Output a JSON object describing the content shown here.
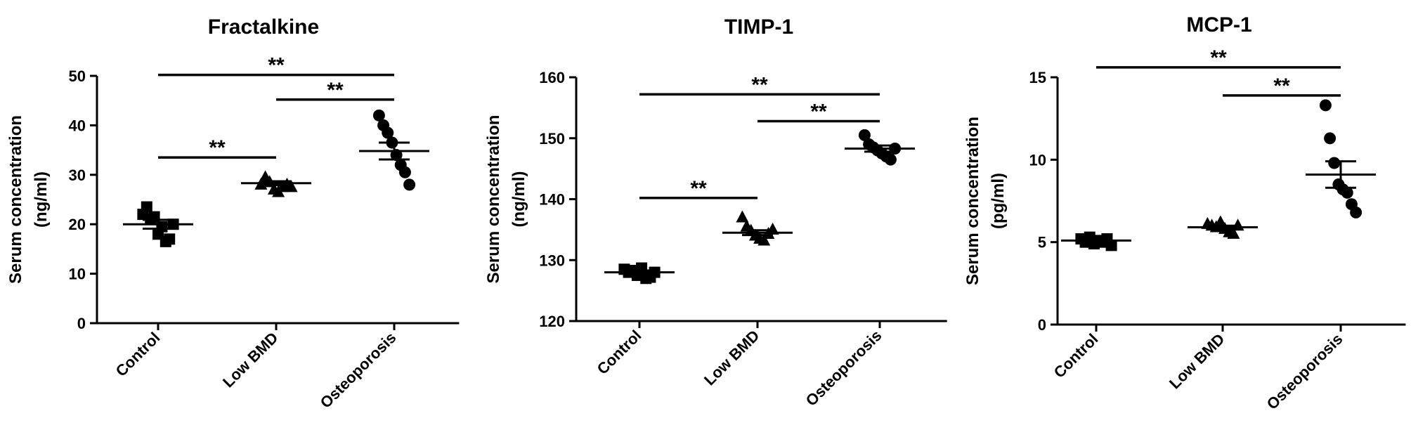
{
  "chart_data": [
    {
      "type": "scatter",
      "title": "Fractalkine",
      "ylabel_line1": "Serum concentration",
      "ylabel_line2": "(ng/ml)",
      "categories": [
        "Control",
        "Low BMD",
        "Osteoporosis"
      ],
      "ylim": [
        0,
        50
      ],
      "yticks": [
        0,
        10,
        20,
        30,
        40,
        50
      ],
      "markers": [
        "square",
        "triangle",
        "circle"
      ],
      "points": [
        [
          22.0,
          23.5,
          21.0,
          21.5,
          18.0,
          19.5,
          16.5,
          17.0,
          20.0
        ],
        [
          28.0,
          29.5,
          28.5,
          27.0,
          26.5,
          27.5,
          28.0,
          27.5
        ],
        [
          42.0,
          40.0,
          38.5,
          36.5,
          34.0,
          32.0,
          30.5,
          28.0
        ]
      ],
      "mean": [
        20.0,
        28.3,
        34.8
      ],
      "sem": [
        0.9,
        0.4,
        1.7
      ],
      "brackets": [
        {
          "from": 0,
          "to": 2,
          "y": 50.2,
          "label": "**"
        },
        {
          "from": 1,
          "to": 2,
          "y": 45.2,
          "label": "**"
        },
        {
          "from": 0,
          "to": 1,
          "y": 33.5,
          "label": "**"
        }
      ]
    },
    {
      "type": "scatter",
      "title": "TIMP-1",
      "ylabel_line1": "Serum concentration",
      "ylabel_line2": "(ng/ml)",
      "categories": [
        "Control",
        "Low BMD",
        "Osteoporosis"
      ],
      "ylim": [
        120,
        160
      ],
      "yticks": [
        120,
        130,
        140,
        150,
        160
      ],
      "markers": [
        "square",
        "triangle",
        "circle"
      ],
      "points": [
        [
          128.5,
          128.0,
          128.3,
          127.5,
          128.7,
          127.0,
          127.2,
          128.0
        ],
        [
          137.0,
          135.5,
          134.8,
          134.0,
          133.5,
          133.2,
          134.3,
          135.0
        ],
        [
          150.5,
          149.0,
          148.5,
          148.0,
          147.5,
          147.0,
          146.5,
          148.3
        ]
      ],
      "mean": [
        128.0,
        134.5,
        148.3
      ],
      "sem": [
        0.3,
        0.4,
        0.5
      ],
      "brackets": [
        {
          "from": 0,
          "to": 2,
          "y": 157.2,
          "label": "**"
        },
        {
          "from": 1,
          "to": 2,
          "y": 152.8,
          "label": "**"
        },
        {
          "from": 0,
          "to": 1,
          "y": 140.2,
          "label": "**"
        }
      ]
    },
    {
      "type": "scatter",
      "title": "MCP-1",
      "ylabel_line1": "Serum concentration",
      "ylabel_line2": "(pg/ml)",
      "categories": [
        "Control",
        "Low BMD",
        "Osteoporosis"
      ],
      "ylim": [
        0,
        15
      ],
      "yticks": [
        0,
        5,
        10,
        15
      ],
      "markers": [
        "square",
        "triangle",
        "circle"
      ],
      "points": [
        [
          5.2,
          5.0,
          5.3,
          4.9,
          5.1,
          5.0,
          5.2,
          4.8
        ],
        [
          6.1,
          6.0,
          5.9,
          6.2,
          5.8,
          5.6,
          5.5,
          6.0
        ],
        [
          13.3,
          11.3,
          9.8,
          8.5,
          8.2,
          8.0,
          7.3,
          6.8
        ]
      ],
      "mean": [
        5.1,
        5.9,
        9.1
      ],
      "sem": [
        0.1,
        0.1,
        0.8
      ],
      "brackets": [
        {
          "from": 0,
          "to": 2,
          "y": 15.6,
          "label": "**"
        },
        {
          "from": 1,
          "to": 2,
          "y": 13.9,
          "label": "**"
        }
      ]
    }
  ]
}
